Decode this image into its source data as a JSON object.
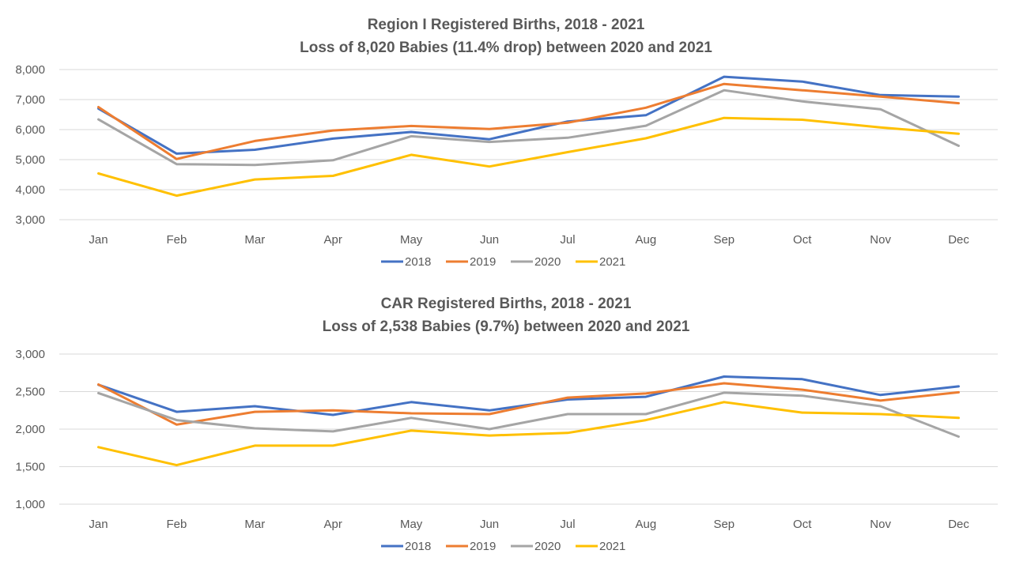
{
  "chart_data": [
    {
      "type": "line",
      "title": "Region I Registered Births, 2018 - 2021",
      "subtitle": "Loss of 8,020 Babies (11.4% drop) between 2020 and 2021",
      "categories": [
        "Jan",
        "Feb",
        "Mar",
        "Apr",
        "May",
        "Jun",
        "Jul",
        "Aug",
        "Sep",
        "Oct",
        "Nov",
        "Dec"
      ],
      "ylim": [
        3000,
        8000
      ],
      "yticks": [
        3000,
        4000,
        5000,
        6000,
        7000,
        8000
      ],
      "ytick_labels": [
        "3,000",
        "4,000",
        "5,000",
        "6,000",
        "7,000",
        "8,000"
      ],
      "grid": true,
      "legend": "bottom",
      "series": [
        {
          "name": "2018",
          "color": "#4472C4",
          "values": [
            6700,
            5200,
            5330,
            5700,
            5920,
            5680,
            6270,
            6480,
            7760,
            7600,
            7150,
            7100
          ]
        },
        {
          "name": "2019",
          "color": "#ED7D31",
          "values": [
            6750,
            5020,
            5620,
            5970,
            6120,
            6020,
            6230,
            6730,
            7520,
            7310,
            7100,
            6880
          ]
        },
        {
          "name": "2020",
          "color": "#A5A5A5",
          "values": [
            6340,
            4850,
            4820,
            4980,
            5780,
            5590,
            5730,
            6130,
            7310,
            6940,
            6680,
            5460
          ]
        },
        {
          "name": "2021",
          "color": "#FFC000",
          "values": [
            4540,
            3800,
            4340,
            4460,
            5160,
            4770,
            5250,
            5710,
            6390,
            6330,
            6070,
            5860
          ]
        }
      ]
    },
    {
      "type": "line",
      "title": "CAR Registered Births, 2018 - 2021",
      "subtitle": "Loss of 2,538 Babies (9.7%) between 2020 and 2021",
      "categories": [
        "Jan",
        "Feb",
        "Mar",
        "Apr",
        "May",
        "Jun",
        "Jul",
        "Aug",
        "Sep",
        "Oct",
        "Nov",
        "Dec"
      ],
      "ylim": [
        1000,
        3000
      ],
      "yticks": [
        1000,
        1500,
        2000,
        2500,
        3000
      ],
      "ytick_labels": [
        "1,000",
        "1,500",
        "2,000",
        "2,500",
        "3,000"
      ],
      "grid": true,
      "legend": "bottom",
      "series": [
        {
          "name": "2018",
          "color": "#4472C4",
          "values": [
            2590,
            2230,
            2305,
            2190,
            2360,
            2250,
            2395,
            2430,
            2700,
            2665,
            2455,
            2570
          ]
        },
        {
          "name": "2019",
          "color": "#ED7D31",
          "values": [
            2595,
            2060,
            2230,
            2250,
            2210,
            2200,
            2420,
            2475,
            2610,
            2525,
            2380,
            2490
          ]
        },
        {
          "name": "2020",
          "color": "#A5A5A5",
          "values": [
            2480,
            2120,
            2010,
            1970,
            2150,
            2000,
            2200,
            2200,
            2485,
            2445,
            2305,
            1900
          ]
        },
        {
          "name": "2021",
          "color": "#FFC000",
          "values": [
            1760,
            1520,
            1780,
            1780,
            1980,
            1915,
            1950,
            2120,
            2360,
            2220,
            2200,
            2150
          ]
        }
      ]
    }
  ]
}
